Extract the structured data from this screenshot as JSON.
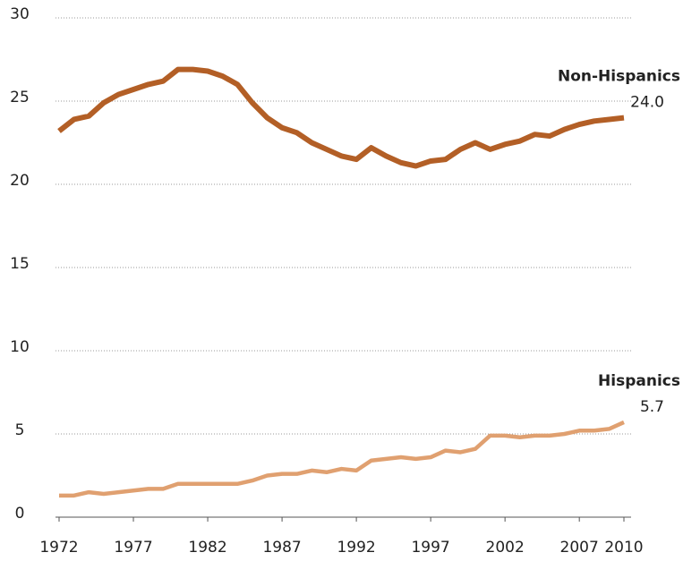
{
  "chart_data": {
    "type": "line",
    "x": [
      1972,
      1973,
      1974,
      1975,
      1976,
      1977,
      1978,
      1979,
      1980,
      1981,
      1982,
      1983,
      1984,
      1985,
      1986,
      1987,
      1988,
      1989,
      1990,
      1991,
      1992,
      1993,
      1994,
      1995,
      1996,
      1997,
      1998,
      1999,
      2000,
      2001,
      2002,
      2003,
      2004,
      2005,
      2006,
      2007,
      2008,
      2009,
      2010
    ],
    "series": [
      {
        "name": "Non-Hispanics",
        "color": "#b35f26",
        "values": [
          23.2,
          23.9,
          24.1,
          24.9,
          25.4,
          25.7,
          26.0,
          26.2,
          26.9,
          26.9,
          26.8,
          26.5,
          26.0,
          24.9,
          24.0,
          23.4,
          23.1,
          22.5,
          22.1,
          21.7,
          21.5,
          22.2,
          21.7,
          21.3,
          21.1,
          21.4,
          21.5,
          22.1,
          22.5,
          22.1,
          22.4,
          22.6,
          23.0,
          22.9,
          23.3,
          23.6,
          23.8,
          23.9,
          24.0
        ],
        "value_labels": [
          null,
          null,
          null,
          null,
          null,
          null,
          null,
          null,
          null,
          null,
          null,
          null,
          null,
          null,
          null,
          null,
          null,
          null,
          null,
          null,
          null,
          null,
          null,
          null,
          null,
          null,
          null,
          null,
          null,
          null,
          null,
          null,
          null,
          null,
          null,
          null,
          null,
          null,
          "24.0"
        ]
      },
      {
        "name": "Hispanics",
        "color": "#e0a070",
        "values": [
          1.3,
          1.3,
          1.5,
          1.4,
          1.5,
          1.6,
          1.7,
          1.7,
          2.0,
          2.0,
          2.0,
          2.0,
          2.0,
          2.2,
          2.5,
          2.6,
          2.6,
          2.8,
          2.7,
          2.9,
          2.8,
          3.4,
          3.5,
          3.6,
          3.5,
          3.6,
          4.0,
          3.9,
          4.1,
          4.9,
          4.9,
          4.8,
          4.9,
          4.9,
          5.0,
          5.2,
          5.2,
          5.3,
          5.7
        ],
        "value_labels": [
          null,
          null,
          null,
          null,
          null,
          null,
          null,
          null,
          null,
          null,
          null,
          null,
          null,
          null,
          null,
          null,
          null,
          null,
          null,
          null,
          null,
          null,
          null,
          null,
          null,
          null,
          null,
          null,
          null,
          null,
          null,
          null,
          null,
          null,
          null,
          null,
          null,
          null,
          "5.7"
        ]
      }
    ],
    "xlim": [
      1972,
      2010
    ],
    "xticks": [
      1972,
      1977,
      1982,
      1987,
      1992,
      1997,
      2002,
      2007,
      2010
    ],
    "ylim": [
      0,
      30
    ],
    "yticks": [
      0,
      5,
      10,
      15,
      20,
      25,
      30
    ],
    "grid": true
  }
}
